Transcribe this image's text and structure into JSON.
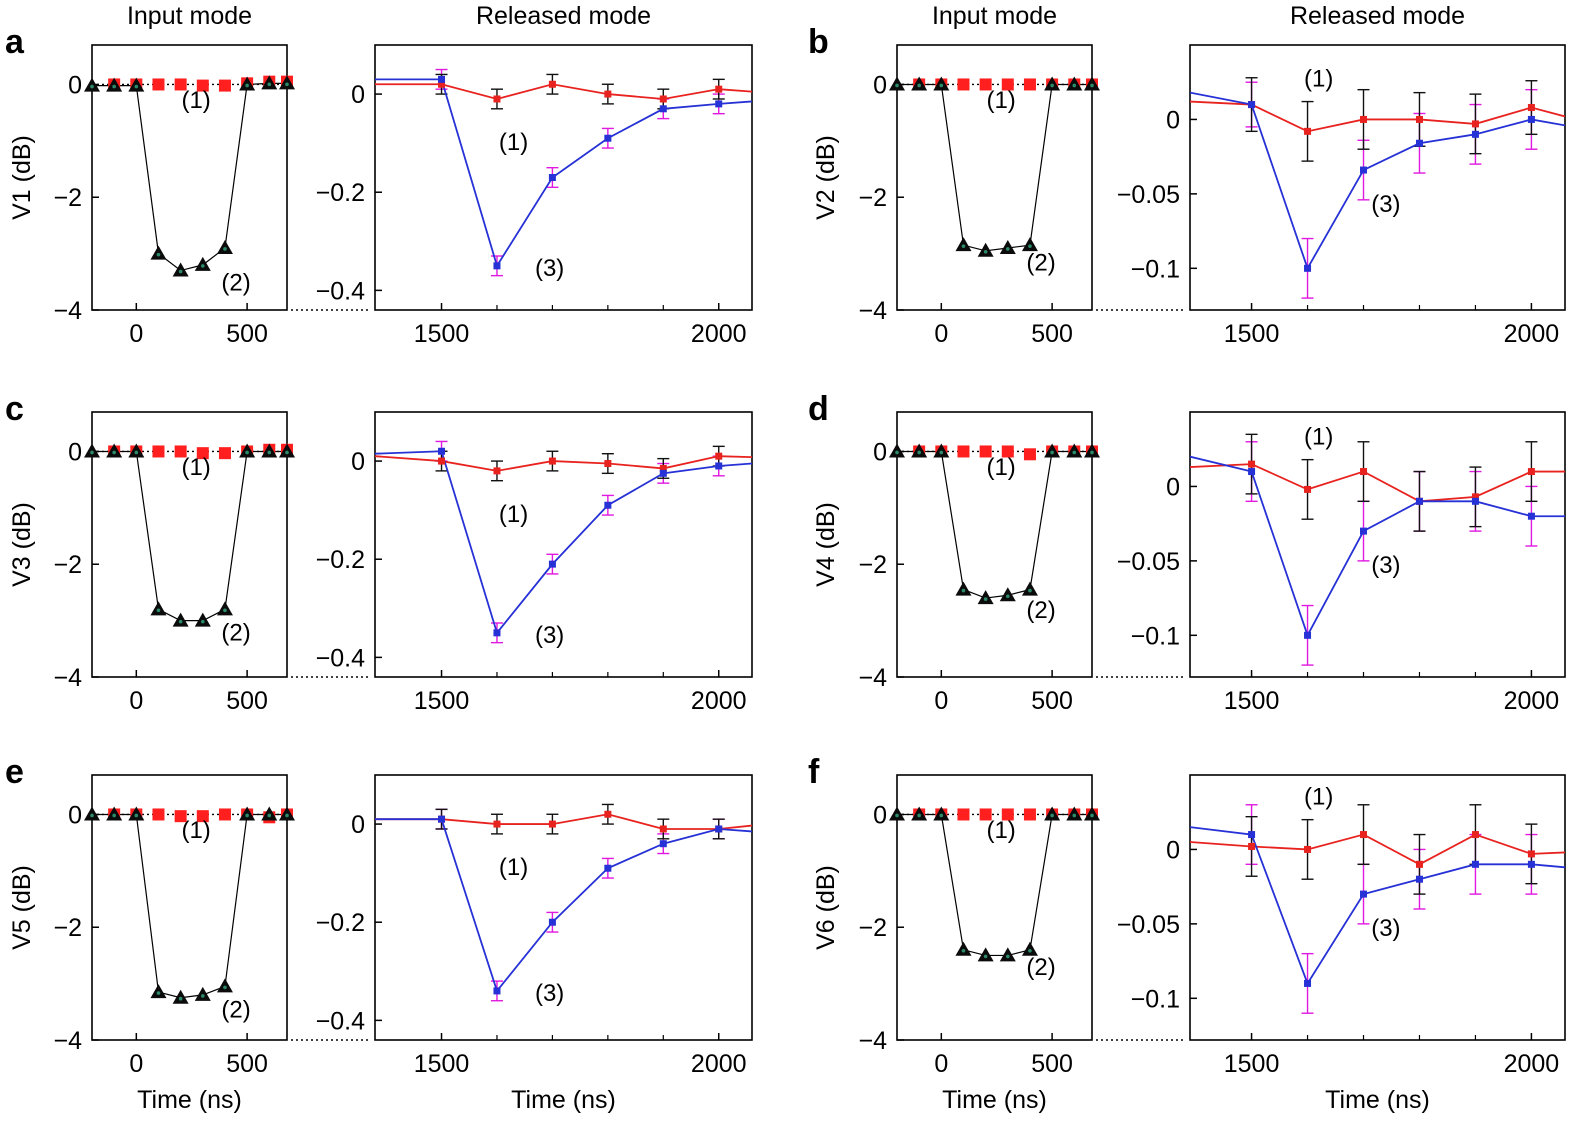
{
  "colors": {
    "ref": "#e8231f",
    "refMarker": "#ff1f1f",
    "sig": "#2631d6",
    "errBlack": "#111111",
    "errMagenta": "#e018e0",
    "triangle": "#0b0b0b",
    "triangleInner": "#2c8a6a"
  },
  "chart_data": [
    {
      "panel": "a",
      "ylabel": "V1 (dB)",
      "input": {
        "title": "Input mode",
        "xlabel": "",
        "xticks": [
          "0",
          "500"
        ],
        "xlim": [
          -200,
          680
        ],
        "yticks": [
          "0",
          "−2",
          "−4"
        ],
        "ylim": [
          -4,
          0.7
        ],
        "series1_x": [
          -100,
          0,
          100,
          200,
          300,
          400,
          500,
          600,
          680
        ],
        "series1_y": [
          0.0,
          0.0,
          0.0,
          0.0,
          -0.02,
          -0.02,
          0.02,
          0.05,
          0.05
        ],
        "series2_x": [
          -200,
          -100,
          0,
          100,
          200,
          300,
          400,
          500,
          600,
          680
        ],
        "series2_y": [
          -0.02,
          -0.02,
          -0.02,
          -3.0,
          -3.3,
          -3.2,
          -2.9,
          0.0,
          0.02,
          0.02
        ],
        "labels": [
          "(1)",
          "(2)"
        ]
      },
      "released": {
        "title": "Released mode",
        "xlabel": "",
        "xticks": [
          "1500",
          "2000"
        ],
        "xlim": [
          1380,
          2060
        ],
        "yticks": [
          "0",
          "−0.2",
          "−0.4"
        ],
        "ytickvals": [
          0,
          -0.2,
          -0.4
        ],
        "ylim": [
          -0.44,
          0.1
        ],
        "ref_x": [
          1380,
          1500,
          1600,
          1700,
          1800,
          1900,
          2000,
          2060
        ],
        "ref_y": [
          0.02,
          0.02,
          -0.01,
          0.02,
          0.0,
          -0.01,
          0.01,
          0.005
        ],
        "ref_err": [
          null,
          0.02,
          0.02,
          0.02,
          0.02,
          0.02,
          0.02,
          null
        ],
        "sig_x": [
          1380,
          1500,
          1600,
          1700,
          1800,
          1900,
          2000,
          2060
        ],
        "sig_y": [
          0.03,
          0.03,
          -0.35,
          -0.17,
          -0.09,
          -0.03,
          -0.02,
          -0.015
        ],
        "sig_err": [
          null,
          0.02,
          0.02,
          0.02,
          0.02,
          0.02,
          0.02,
          null
        ],
        "labels": [
          "(1)",
          "(3)"
        ]
      }
    },
    {
      "panel": "b",
      "ylabel": "V2 (dB)",
      "input": {
        "title": "Input mode",
        "xlabel": "",
        "xticks": [
          "0",
          "500"
        ],
        "xlim": [
          -200,
          680
        ],
        "yticks": [
          "0",
          "−2",
          "−4"
        ],
        "ylim": [
          -4,
          0.7
        ],
        "series1_x": [
          -100,
          0,
          100,
          200,
          300,
          400,
          500,
          600,
          680
        ],
        "series1_y": [
          0.0,
          0.0,
          0.0,
          0.0,
          0.0,
          0.0,
          0.0,
          0.0,
          0.0
        ],
        "series2_x": [
          -200,
          -100,
          0,
          100,
          200,
          300,
          400,
          500,
          600,
          680
        ],
        "series2_y": [
          0.0,
          0.0,
          0.0,
          -2.85,
          -2.95,
          -2.9,
          -2.85,
          0.0,
          0.0,
          0.0
        ],
        "labels": [
          "(1)",
          "(2)"
        ]
      },
      "released": {
        "title": "Released mode",
        "xlabel": "",
        "xticks": [
          "1500",
          "2000"
        ],
        "xlim": [
          1390,
          2060
        ],
        "yticks": [
          "0",
          "−0.05",
          "−0.1"
        ],
        "ytickvals": [
          0,
          -0.05,
          -0.1
        ],
        "ylim": [
          -0.128,
          0.05
        ],
        "ref_x": [
          1390,
          1500,
          1600,
          1700,
          1800,
          1900,
          2000,
          2060
        ],
        "ref_y": [
          0.012,
          0.01,
          -0.008,
          0.0,
          0.0,
          -0.003,
          0.008,
          0.002
        ],
        "ref_err": [
          null,
          0.018,
          0.02,
          0.02,
          0.018,
          0.02,
          0.018,
          null
        ],
        "sig_x": [
          1390,
          1500,
          1600,
          1700,
          1800,
          1900,
          2000,
          2060
        ],
        "sig_y": [
          0.018,
          0.01,
          -0.1,
          -0.034,
          -0.016,
          -0.01,
          0.0,
          -0.004
        ],
        "sig_err": [
          null,
          0.015,
          0.02,
          0.02,
          0.02,
          0.02,
          0.02,
          null
        ],
        "labels": [
          "(1)",
          "(3)"
        ]
      }
    },
    {
      "panel": "c",
      "ylabel": "V3 (dB)",
      "input": {
        "title": "",
        "xlabel": "",
        "xticks": [
          "0",
          "500"
        ],
        "xlim": [
          -200,
          680
        ],
        "yticks": [
          "0",
          "−2",
          "−4"
        ],
        "ylim": [
          -4,
          0.7
        ],
        "series1_x": [
          -100,
          0,
          100,
          200,
          300,
          400,
          500,
          600,
          680
        ],
        "series1_y": [
          0.0,
          0.0,
          0.0,
          0.0,
          -0.03,
          -0.03,
          0.0,
          0.03,
          0.03
        ],
        "series2_x": [
          -200,
          -100,
          0,
          100,
          200,
          300,
          400,
          500,
          600,
          680
        ],
        "series2_y": [
          0.0,
          0.0,
          0.0,
          -2.8,
          -3.0,
          -3.0,
          -2.8,
          0.0,
          0.0,
          0.0
        ],
        "labels": [
          "(1)",
          "(2)"
        ]
      },
      "released": {
        "title": "",
        "xlabel": "",
        "xticks": [
          "1500",
          "2000"
        ],
        "xlim": [
          1380,
          2060
        ],
        "yticks": [
          "0",
          "−0.2",
          "−0.4"
        ],
        "ytickvals": [
          0,
          -0.2,
          -0.4
        ],
        "ylim": [
          -0.44,
          0.1
        ],
        "ref_x": [
          1380,
          1500,
          1600,
          1700,
          1800,
          1900,
          2000,
          2060
        ],
        "ref_y": [
          0.01,
          0.0,
          -0.02,
          0.0,
          -0.005,
          -0.015,
          0.01,
          0.008
        ],
        "ref_err": [
          null,
          0.02,
          0.02,
          0.02,
          0.02,
          0.02,
          0.02,
          null
        ],
        "sig_x": [
          1380,
          1500,
          1600,
          1700,
          1800,
          1900,
          2000,
          2060
        ],
        "sig_y": [
          0.015,
          0.02,
          -0.35,
          -0.21,
          -0.09,
          -0.025,
          -0.01,
          -0.005
        ],
        "sig_err": [
          null,
          0.02,
          0.02,
          0.02,
          0.02,
          0.02,
          0.02,
          null
        ],
        "labels": [
          "(1)",
          "(3)"
        ]
      }
    },
    {
      "panel": "d",
      "ylabel": "V4 (dB)",
      "input": {
        "title": "",
        "xlabel": "",
        "xticks": [
          "0",
          "500"
        ],
        "xlim": [
          -200,
          680
        ],
        "yticks": [
          "0",
          "−2",
          "−4"
        ],
        "ylim": [
          -4,
          0.7
        ],
        "series1_x": [
          -100,
          0,
          100,
          200,
          300,
          400,
          500,
          600,
          680
        ],
        "series1_y": [
          0.0,
          0.0,
          0.0,
          0.0,
          0.0,
          -0.05,
          0.0,
          0.0,
          0.0
        ],
        "series2_x": [
          -200,
          -100,
          0,
          100,
          200,
          300,
          400,
          500,
          600,
          680
        ],
        "series2_y": [
          0.0,
          0.0,
          0.0,
          -2.45,
          -2.6,
          -2.55,
          -2.45,
          0.0,
          0.0,
          0.0
        ],
        "labels": [
          "(1)",
          "(2)"
        ]
      },
      "released": {
        "title": "",
        "xlabel": "",
        "xticks": [
          "1500",
          "2000"
        ],
        "xlim": [
          1390,
          2060
        ],
        "yticks": [
          "0",
          "−0.05",
          "−0.1"
        ],
        "ytickvals": [
          0,
          -0.05,
          -0.1
        ],
        "ylim": [
          -0.128,
          0.05
        ],
        "ref_x": [
          1390,
          1500,
          1600,
          1700,
          1800,
          1900,
          2000,
          2060
        ],
        "ref_y": [
          0.013,
          0.015,
          -0.002,
          0.01,
          -0.01,
          -0.007,
          0.01,
          0.01
        ],
        "ref_err": [
          null,
          0.02,
          0.02,
          0.02,
          0.02,
          0.02,
          0.02,
          null
        ],
        "sig_x": [
          1390,
          1500,
          1600,
          1700,
          1800,
          1900,
          2000,
          2060
        ],
        "sig_y": [
          0.02,
          0.01,
          -0.1,
          -0.03,
          -0.01,
          -0.01,
          -0.02,
          -0.02
        ],
        "sig_err": [
          null,
          0.02,
          0.02,
          0.02,
          0.02,
          0.02,
          0.02,
          null
        ],
        "labels": [
          "(1)",
          "(3)"
        ]
      }
    },
    {
      "panel": "e",
      "ylabel": "V5 (dB)",
      "input": {
        "title": "",
        "xlabel": "Time (ns)",
        "xticks": [
          "0",
          "500"
        ],
        "xlim": [
          -200,
          680
        ],
        "yticks": [
          "0",
          "−2",
          "−4"
        ],
        "ylim": [
          -4,
          0.7
        ],
        "series1_x": [
          -100,
          0,
          100,
          200,
          300,
          400,
          500,
          600,
          680
        ],
        "series1_y": [
          0.0,
          0.0,
          0.0,
          -0.03,
          -0.03,
          0.0,
          0.0,
          -0.05,
          0.0
        ],
        "series2_x": [
          -200,
          -100,
          0,
          100,
          200,
          300,
          400,
          500,
          600,
          680
        ],
        "series2_y": [
          0.0,
          0.0,
          0.0,
          -3.15,
          -3.25,
          -3.2,
          -3.05,
          0.0,
          0.0,
          0.0
        ],
        "labels": [
          "(1)",
          "(2)"
        ]
      },
      "released": {
        "title": "",
        "xlabel": "Time (ns)",
        "xticks": [
          "1500",
          "2000"
        ],
        "xlim": [
          1380,
          2060
        ],
        "yticks": [
          "0",
          "−0.2",
          "−0.4"
        ],
        "ytickvals": [
          0,
          -0.2,
          -0.4
        ],
        "ylim": [
          -0.44,
          0.1
        ],
        "ref_x": [
          1380,
          1500,
          1600,
          1700,
          1800,
          1900,
          2000,
          2060
        ],
        "ref_y": [
          0.01,
          0.01,
          0.0,
          0.0,
          0.02,
          -0.01,
          -0.01,
          -0.003
        ],
        "ref_err": [
          null,
          0.02,
          0.02,
          0.02,
          0.02,
          0.02,
          0.02,
          null
        ],
        "sig_x": [
          1380,
          1500,
          1600,
          1700,
          1800,
          1900,
          2000,
          2060
        ],
        "sig_y": [
          0.01,
          0.01,
          -0.34,
          -0.2,
          -0.09,
          -0.04,
          -0.01,
          -0.015
        ],
        "sig_err": [
          null,
          0.02,
          0.02,
          0.02,
          0.02,
          0.02,
          0.02,
          null
        ],
        "labels": [
          "(1)",
          "(3)"
        ]
      }
    },
    {
      "panel": "f",
      "ylabel": "V6 (dB)",
      "input": {
        "title": "",
        "xlabel": "Time (ns)",
        "xticks": [
          "0",
          "500"
        ],
        "xlim": [
          -200,
          680
        ],
        "yticks": [
          "0",
          "−2",
          "−4"
        ],
        "ylim": [
          -4,
          0.7
        ],
        "series1_x": [
          -100,
          0,
          100,
          200,
          300,
          400,
          500,
          600,
          680
        ],
        "series1_y": [
          0.0,
          0.0,
          0.0,
          0.0,
          0.0,
          0.0,
          0.0,
          0.0,
          0.0
        ],
        "series2_x": [
          -200,
          -100,
          0,
          100,
          200,
          300,
          400,
          500,
          600,
          680
        ],
        "series2_y": [
          0.0,
          0.0,
          0.0,
          -2.4,
          -2.5,
          -2.5,
          -2.4,
          0.0,
          0.0,
          0.0
        ],
        "labels": [
          "(1)",
          "(2)"
        ]
      },
      "released": {
        "title": "",
        "xlabel": "Time (ns)",
        "xticks": [
          "1500",
          "2000"
        ],
        "xlim": [
          1390,
          2060
        ],
        "yticks": [
          "0",
          "−0.05",
          "−0.1"
        ],
        "ytickvals": [
          0,
          -0.05,
          -0.1
        ],
        "ylim": [
          -0.128,
          0.05
        ],
        "ref_x": [
          1390,
          1500,
          1600,
          1700,
          1800,
          1900,
          2000,
          2060
        ],
        "ref_y": [
          0.005,
          0.002,
          0.0,
          0.01,
          -0.01,
          0.01,
          -0.003,
          -0.002
        ],
        "ref_err": [
          null,
          0.02,
          0.02,
          0.02,
          0.02,
          0.02,
          0.02,
          null
        ],
        "sig_x": [
          1390,
          1500,
          1600,
          1700,
          1800,
          1900,
          2000,
          2060
        ],
        "sig_y": [
          0.015,
          0.01,
          -0.09,
          -0.03,
          -0.02,
          -0.01,
          -0.01,
          -0.012
        ],
        "sig_err": [
          null,
          0.02,
          0.02,
          0.02,
          0.02,
          0.02,
          0.02,
          null
        ],
        "labels": [
          "(1)",
          "(3)"
        ]
      }
    }
  ]
}
